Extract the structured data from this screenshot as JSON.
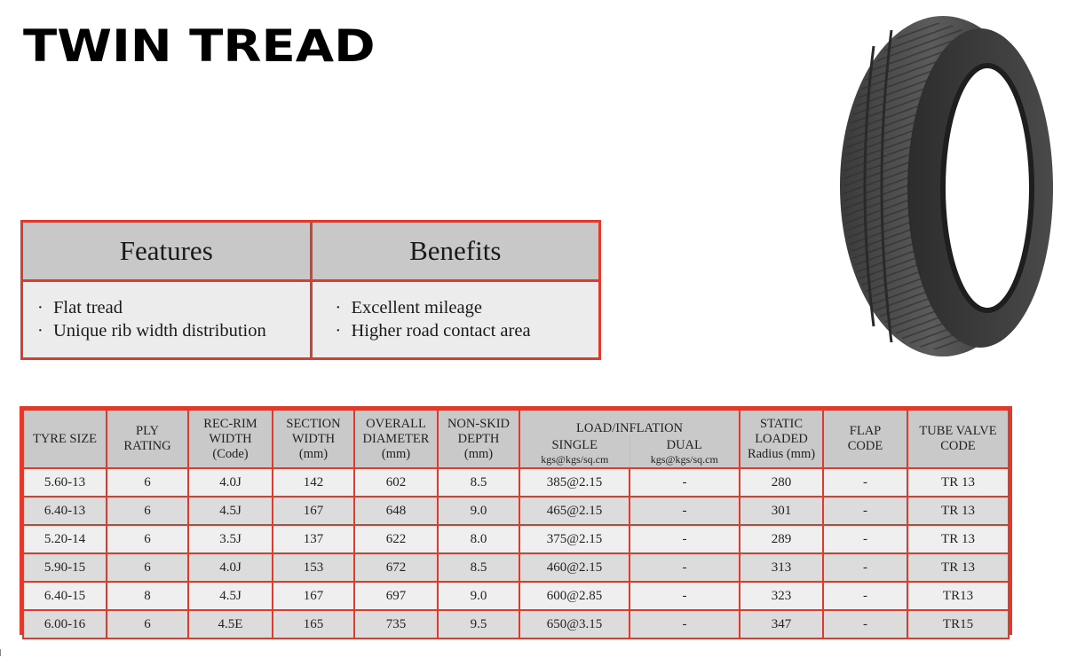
{
  "title": "TWIN TREAD",
  "features": {
    "heading": "Features",
    "items": [
      "Flat tread",
      "Unique rib width distribution"
    ]
  },
  "benefits": {
    "heading": "Benefits",
    "items": [
      "Excellent mileage",
      "Higher road contact area"
    ]
  },
  "table": {
    "headers": {
      "tyre_size": "TYRE SIZE",
      "ply_rating": [
        "PLY",
        "RATING"
      ],
      "rec_rim": [
        "REC-RIM",
        "WIDTH",
        "(Code)"
      ],
      "section_width": [
        "SECTION",
        "WIDTH",
        "(mm)"
      ],
      "overall_diameter": [
        "OVERALL",
        "DIAMETER",
        "(mm)"
      ],
      "non_skid": [
        "NON-SKID",
        "DEPTH",
        "(mm)"
      ],
      "load_inflation": "LOAD/INFLATION",
      "single": "SINGLE",
      "single_unit": "kgs@kgs/sq.cm",
      "dual": "DUAL",
      "dual_unit": "kgs@kgs/sq.cm",
      "static_loaded": [
        "STATIC",
        "LOADED",
        "Radius (mm)"
      ],
      "flap_code": [
        "FLAP",
        "CODE"
      ],
      "tube_valve": [
        "TUBE VALVE",
        "CODE"
      ]
    },
    "rows": [
      [
        "5.60-13",
        "6",
        "4.0J",
        "142",
        "602",
        "8.5",
        "385@2.15",
        "-",
        "280",
        "-",
        "TR 13"
      ],
      [
        "6.40-13",
        "6",
        "4.5J",
        "167",
        "648",
        "9.0",
        "465@2.15",
        "-",
        "301",
        "-",
        "TR 13"
      ],
      [
        "5.20-14",
        "6",
        "3.5J",
        "137",
        "622",
        "8.0",
        "375@2.15",
        "-",
        "289",
        "-",
        "TR 13"
      ],
      [
        "5.90-15",
        "6",
        "4.0J",
        "153",
        "672",
        "8.5",
        "460@2.15",
        "-",
        "313",
        "-",
        "TR 13"
      ],
      [
        "6.40-15",
        "8",
        "4.5J",
        "167",
        "697",
        "9.0",
        "600@2.85",
        "-",
        "323",
        "-",
        "TR13"
      ],
      [
        "6.00-16",
        "6",
        "4.5E",
        "165",
        "735",
        "9.5",
        "650@3.15",
        "-",
        "347",
        "-",
        "TR15"
      ]
    ]
  },
  "colors": {
    "border": "#e03a2c",
    "header_bg": "#c9c9c9"
  },
  "icons": {
    "product_image": "tyre-image"
  }
}
